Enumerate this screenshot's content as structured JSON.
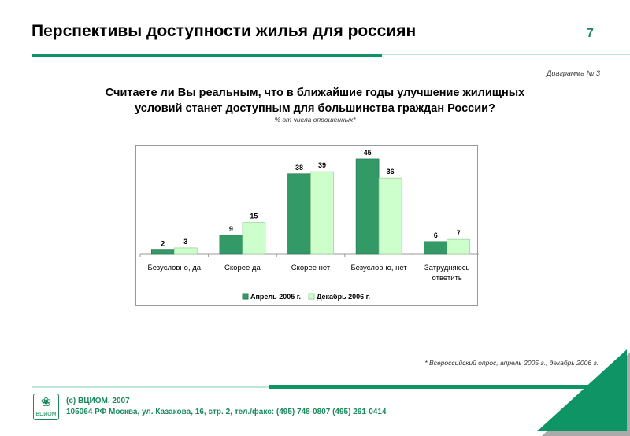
{
  "header": {
    "title": "Перспективы доступности жилья для россиян",
    "page_number": "7",
    "diagram_label": "Диаграмма № 3"
  },
  "question": {
    "line1": "Считаете ли Вы реальным, что в ближайшие годы улучшение жилищных",
    "line2": "условий станет доступным для большинства граждан России?",
    "subtitle": "% от числа опрошенных*"
  },
  "chart_data": {
    "type": "bar",
    "categories": [
      "Безусловно, да",
      "Скорее да",
      "Скорее нет",
      "Безусловно, нет",
      "Затрудняюсь ответить"
    ],
    "series": [
      {
        "name": "Апрель 2005 г.",
        "values": [
          2,
          9,
          38,
          45,
          6
        ],
        "color": "#339966"
      },
      {
        "name": "Декабрь 2006 г.",
        "values": [
          3,
          15,
          39,
          36,
          7
        ],
        "color": "#ccffcc"
      }
    ],
    "ylim": [
      0,
      50
    ],
    "legend": "bottom",
    "grid": false
  },
  "footnote": "* Всероссийский опрос, апрель 2005 г., декабрь 2006 г.",
  "footer": {
    "copyright": "(c) ВЦИОМ, 2007",
    "address": "105064 РФ Москва, ул. Казакова, 16, стр. 2, тел./факс: (495) 748-0807 (495) 261-0414",
    "logo_text": "ВЦИОМ"
  },
  "colors": {
    "accent": "#0f9466"
  }
}
